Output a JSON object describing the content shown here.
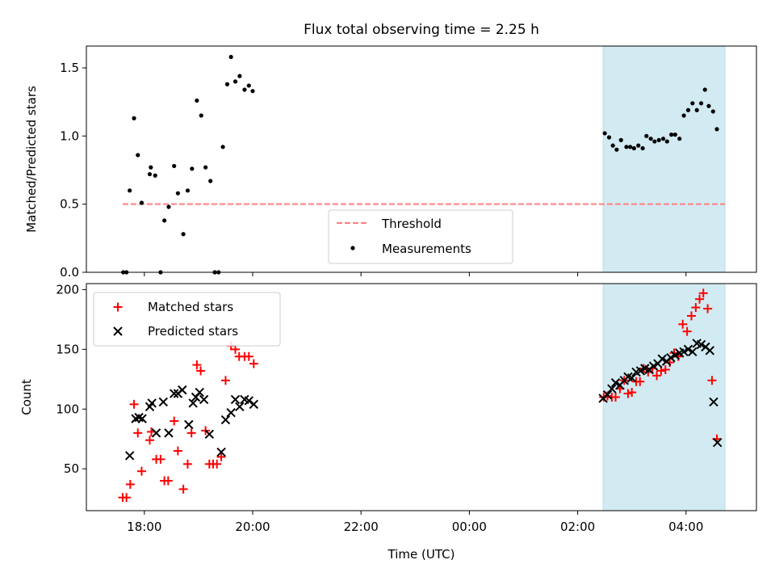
{
  "title": "Flux total observing time = 2.25 h",
  "x_axis": {
    "label": "Time (UTC)",
    "tick_values": [
      18,
      20,
      22,
      24,
      26,
      28
    ],
    "tick_labels": [
      "18:00",
      "20:00",
      "22:00",
      "00:00",
      "02:00",
      "04:00"
    ],
    "range": [
      16.93,
      29.3
    ],
    "unit": "hours UTC (values >= 24 are the following day)"
  },
  "shaded_interval": {
    "start": 26.47,
    "end": 28.72,
    "color": "#add8e6"
  },
  "colors": {
    "threshold": "#ff7f7f",
    "measurements": "#000000",
    "matched": "#ff0000",
    "predicted": "#000000",
    "shade": "#add8e6"
  },
  "chart_data": [
    {
      "type": "scatter",
      "ylabel": "Matched/Predicted stars",
      "ylim": [
        0,
        1.66
      ],
      "yticks": [
        0.0,
        0.5,
        1.0,
        1.5
      ],
      "ytick_labels": [
        "0.0",
        "0.5",
        "1.0",
        "1.5"
      ],
      "legend_position": "bottom-center",
      "legend": [
        "Threshold",
        "Measurements"
      ],
      "threshold": {
        "name": "Threshold",
        "value": 0.5,
        "x_range": [
          17.6,
          28.72
        ],
        "style": "dashed"
      },
      "series": [
        {
          "name": "Measurements",
          "points": [
            [
              17.61,
              0.0
            ],
            [
              17.67,
              0.0
            ],
            [
              17.73,
              0.6
            ],
            [
              17.81,
              1.13
            ],
            [
              17.88,
              0.86
            ],
            [
              17.95,
              0.51
            ],
            [
              18.1,
              0.72
            ],
            [
              18.12,
              0.77
            ],
            [
              18.2,
              0.71
            ],
            [
              18.3,
              0.0
            ],
            [
              18.37,
              0.38
            ],
            [
              18.45,
              0.48
            ],
            [
              18.55,
              0.78
            ],
            [
              18.62,
              0.58
            ],
            [
              18.72,
              0.28
            ],
            [
              18.8,
              0.6
            ],
            [
              18.88,
              0.76
            ],
            [
              18.97,
              1.26
            ],
            [
              19.05,
              1.15
            ],
            [
              19.13,
              0.77
            ],
            [
              19.22,
              0.67
            ],
            [
              19.3,
              0.0
            ],
            [
              19.37,
              0.0
            ],
            [
              19.45,
              0.92
            ],
            [
              19.53,
              1.38
            ],
            [
              19.6,
              1.58
            ],
            [
              19.68,
              1.4
            ],
            [
              19.76,
              1.44
            ],
            [
              19.85,
              1.34
            ],
            [
              19.93,
              1.37
            ],
            [
              20.0,
              1.33
            ],
            [
              26.5,
              1.02
            ],
            [
              26.58,
              0.99
            ],
            [
              26.65,
              0.93
            ],
            [
              26.72,
              0.9
            ],
            [
              26.8,
              0.97
            ],
            [
              26.9,
              0.92
            ],
            [
              26.97,
              0.92
            ],
            [
              27.04,
              0.91
            ],
            [
              27.12,
              0.93
            ],
            [
              27.2,
              0.91
            ],
            [
              27.27,
              1.0
            ],
            [
              27.35,
              0.98
            ],
            [
              27.42,
              0.96
            ],
            [
              27.5,
              0.97
            ],
            [
              27.58,
              0.98
            ],
            [
              27.65,
              0.96
            ],
            [
              27.73,
              1.01
            ],
            [
              27.8,
              1.01
            ],
            [
              27.88,
              0.98
            ],
            [
              27.96,
              1.15
            ],
            [
              28.04,
              1.19
            ],
            [
              28.12,
              1.24
            ],
            [
              28.2,
              1.19
            ],
            [
              28.28,
              1.24
            ],
            [
              28.35,
              1.34
            ],
            [
              28.42,
              1.22
            ],
            [
              28.5,
              1.18
            ],
            [
              28.57,
              1.05
            ]
          ]
        }
      ]
    },
    {
      "type": "scatter",
      "ylabel": "Count",
      "ylim": [
        15,
        205
      ],
      "yticks": [
        50,
        100,
        150,
        200
      ],
      "ytick_labels": [
        "50",
        "100",
        "150",
        "200"
      ],
      "legend_position": "top-left",
      "legend": [
        "Matched stars",
        "Predicted stars"
      ],
      "series": [
        {
          "name": "Matched stars",
          "marker": "+",
          "points": [
            [
              17.6,
              26
            ],
            [
              17.67,
              26
            ],
            [
              17.74,
              37
            ],
            [
              17.81,
              104
            ],
            [
              17.88,
              80
            ],
            [
              17.95,
              48
            ],
            [
              18.1,
              74
            ],
            [
              18.13,
              81
            ],
            [
              18.22,
              58
            ],
            [
              18.3,
              58
            ],
            [
              18.37,
              40
            ],
            [
              18.44,
              40
            ],
            [
              18.55,
              90
            ],
            [
              18.62,
              65
            ],
            [
              18.72,
              33
            ],
            [
              18.8,
              54
            ],
            [
              18.87,
              80
            ],
            [
              18.97,
              137
            ],
            [
              19.04,
              132
            ],
            [
              19.13,
              82
            ],
            [
              19.2,
              54
            ],
            [
              19.27,
              54
            ],
            [
              19.34,
              54
            ],
            [
              19.42,
              60
            ],
            [
              19.5,
              124
            ],
            [
              19.6,
              153
            ],
            [
              19.68,
              150
            ],
            [
              19.75,
              144
            ],
            [
              19.85,
              144
            ],
            [
              19.93,
              144
            ],
            [
              20.02,
              138
            ],
            [
              26.48,
              110
            ],
            [
              26.55,
              111
            ],
            [
              26.63,
              110
            ],
            [
              26.7,
              110
            ],
            [
              26.78,
              117
            ],
            [
              26.86,
              124
            ],
            [
              26.93,
              113
            ],
            [
              27.0,
              114
            ],
            [
              27.08,
              123
            ],
            [
              27.15,
              123
            ],
            [
              27.22,
              134
            ],
            [
              27.3,
              131
            ],
            [
              27.38,
              134
            ],
            [
              27.46,
              128
            ],
            [
              27.54,
              132
            ],
            [
              27.62,
              133
            ],
            [
              27.7,
              139
            ],
            [
              27.78,
              147
            ],
            [
              27.86,
              144
            ],
            [
              27.94,
              171
            ],
            [
              28.02,
              165
            ],
            [
              28.1,
              178
            ],
            [
              28.18,
              185
            ],
            [
              28.25,
              192
            ],
            [
              28.32,
              197
            ],
            [
              28.4,
              184
            ],
            [
              28.48,
              124
            ],
            [
              28.57,
              75
            ]
          ]
        },
        {
          "name": "Predicted stars",
          "marker": "x",
          "points": [
            [
              17.73,
              61
            ],
            [
              17.84,
              92
            ],
            [
              17.9,
              93
            ],
            [
              17.96,
              92
            ],
            [
              18.1,
              102
            ],
            [
              18.14,
              105
            ],
            [
              18.22,
              80
            ],
            [
              18.35,
              106
            ],
            [
              18.45,
              80
            ],
            [
              18.55,
              113
            ],
            [
              18.62,
              113
            ],
            [
              18.7,
              116
            ],
            [
              18.82,
              87
            ],
            [
              18.9,
              105
            ],
            [
              18.95,
              110
            ],
            [
              19.02,
              114
            ],
            [
              19.1,
              108
            ],
            [
              19.2,
              79
            ],
            [
              19.42,
              64
            ],
            [
              19.5,
              91
            ],
            [
              19.6,
              97
            ],
            [
              19.68,
              108
            ],
            [
              19.76,
              102
            ],
            [
              19.85,
              108
            ],
            [
              19.93,
              107
            ],
            [
              20.02,
              104
            ],
            [
              26.47,
              109
            ],
            [
              26.55,
              112
            ],
            [
              26.63,
              117
            ],
            [
              26.7,
              122
            ],
            [
              26.78,
              120
            ],
            [
              26.86,
              124
            ],
            [
              26.93,
              127
            ],
            [
              27.0,
              126
            ],
            [
              27.08,
              131
            ],
            [
              27.16,
              132
            ],
            [
              27.24,
              134
            ],
            [
              27.32,
              133
            ],
            [
              27.4,
              136
            ],
            [
              27.48,
              138
            ],
            [
              27.56,
              142
            ],
            [
              27.64,
              140
            ],
            [
              27.72,
              143
            ],
            [
              27.8,
              145
            ],
            [
              27.88,
              147
            ],
            [
              27.96,
              148
            ],
            [
              28.04,
              150
            ],
            [
              28.12,
              148
            ],
            [
              28.2,
              155
            ],
            [
              28.28,
              154
            ],
            [
              28.36,
              152
            ],
            [
              28.44,
              149
            ],
            [
              28.51,
              106
            ],
            [
              28.58,
              72
            ]
          ]
        }
      ]
    }
  ]
}
